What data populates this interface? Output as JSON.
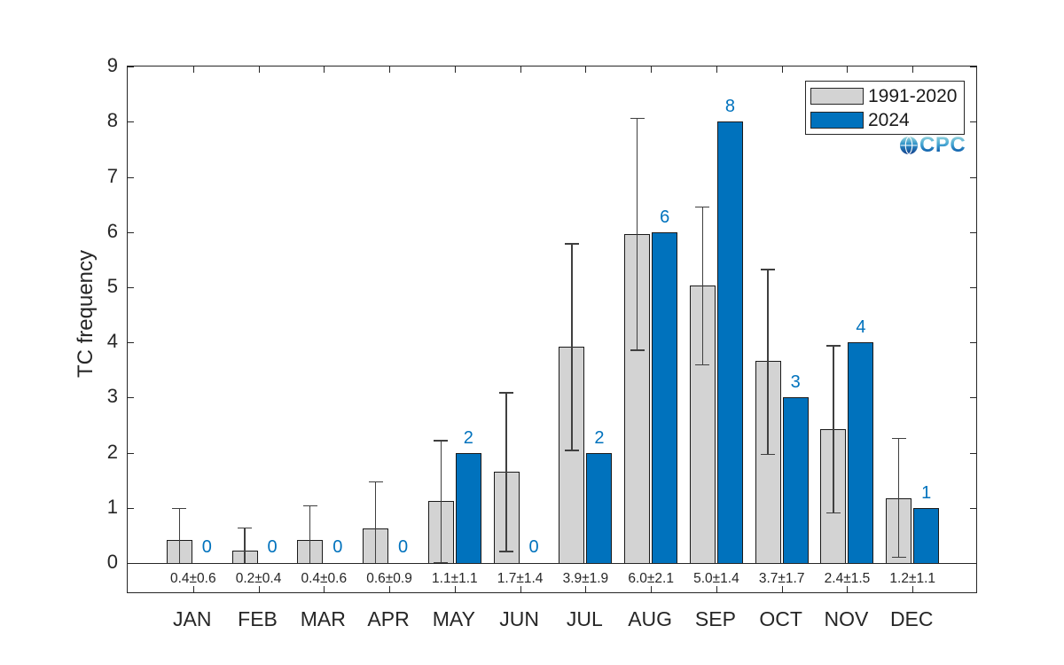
{
  "figure": {
    "background": "#ffffff",
    "axis_color": "#262626",
    "logo_text": "CPC"
  },
  "chart_data": {
    "type": "bar",
    "title": "",
    "xlabel": "",
    "ylabel": "TC frequency",
    "ylim": [
      -0.61,
      9
    ],
    "yticks": [
      0,
      1,
      2,
      3,
      4,
      5,
      6,
      7,
      8,
      9
    ],
    "grid": false,
    "legend_position": "top-right",
    "categories": [
      "JAN",
      "FEB",
      "MAR",
      "APR",
      "MAY",
      "JUN",
      "JUL",
      "AUG",
      "SEP",
      "OCT",
      "NOV",
      "DEC"
    ],
    "series": [
      {
        "name": "1991-2020",
        "style": "bar-with-errorbars",
        "color": "#d3d3d3",
        "edge_color": "#1a1a1a",
        "values": [
          0.42,
          0.23,
          0.42,
          0.63,
          1.12,
          1.65,
          3.93,
          5.97,
          5.03,
          3.67,
          2.43,
          1.18
        ],
        "error_low": [
          -0.2,
          -0.2,
          -0.2,
          -0.3,
          0.02,
          0.22,
          2.05,
          3.87,
          3.6,
          1.98,
          0.92,
          0.12
        ],
        "error_high": [
          1.0,
          0.65,
          1.05,
          1.48,
          2.23,
          3.1,
          5.8,
          8.07,
          6.47,
          5.33,
          3.95,
          2.27
        ]
      },
      {
        "name": "2024",
        "style": "bar",
        "color": "#0072bd",
        "edge_color": "#1a1a1a",
        "values": [
          0,
          0,
          0,
          0,
          2,
          0,
          2,
          6,
          8,
          3,
          4,
          1
        ],
        "value_labels": [
          "0",
          "0",
          "0",
          "0",
          "2",
          "0",
          "2",
          "6",
          "8",
          "3",
          "4",
          "1"
        ],
        "label_color": "#0072bd"
      }
    ],
    "mean_std_labels": [
      "0.4±0.6",
      "0.2±0.4",
      "0.4±0.6",
      "0.6±0.9",
      "1.1±1.1",
      "1.7±1.4",
      "3.9±1.9",
      "6.0±2.1",
      "5.0±1.4",
      "3.7±1.7",
      "2.4±1.5",
      "1.2±1.1"
    ]
  }
}
